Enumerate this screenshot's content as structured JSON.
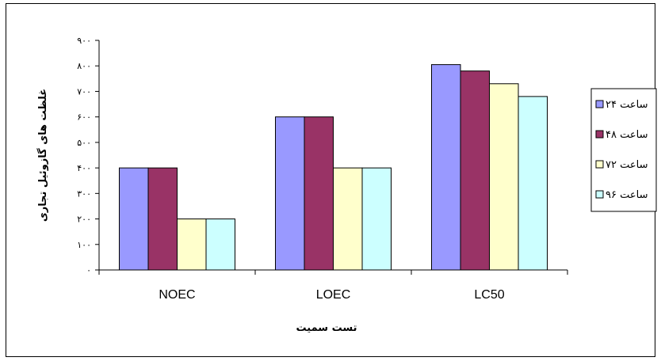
{
  "chart_data": {
    "type": "bar",
    "categories": [
      "NOEC",
      "LOEC",
      "LC50"
    ],
    "series": [
      {
        "name": "ساعت ۲۴",
        "values": [
          400,
          600,
          805
        ],
        "color": "#9999FF"
      },
      {
        "name": "ساعت ۴۸",
        "values": [
          400,
          600,
          780
        ],
        "color": "#993366"
      },
      {
        "name": "ساعت ۷۲",
        "values": [
          200,
          400,
          730
        ],
        "color": "#FFFFCC"
      },
      {
        "name": "ساعت ۹۶",
        "values": [
          200,
          400,
          680
        ],
        "color": "#CCFFFF"
      }
    ],
    "yticks": [
      "۰",
      "۱۰۰",
      "۲۰۰",
      "۳۰۰",
      "۴۰۰",
      "۵۰۰",
      "۶۰۰",
      "۷۰۰",
      "۸۰۰",
      "۹۰۰"
    ],
    "ylim": [
      0,
      900
    ],
    "xlabel": "تست سمیت",
    "ylabel": "غلظت های گازوئیل تجاری",
    "legend_position": "right",
    "grid": false
  }
}
